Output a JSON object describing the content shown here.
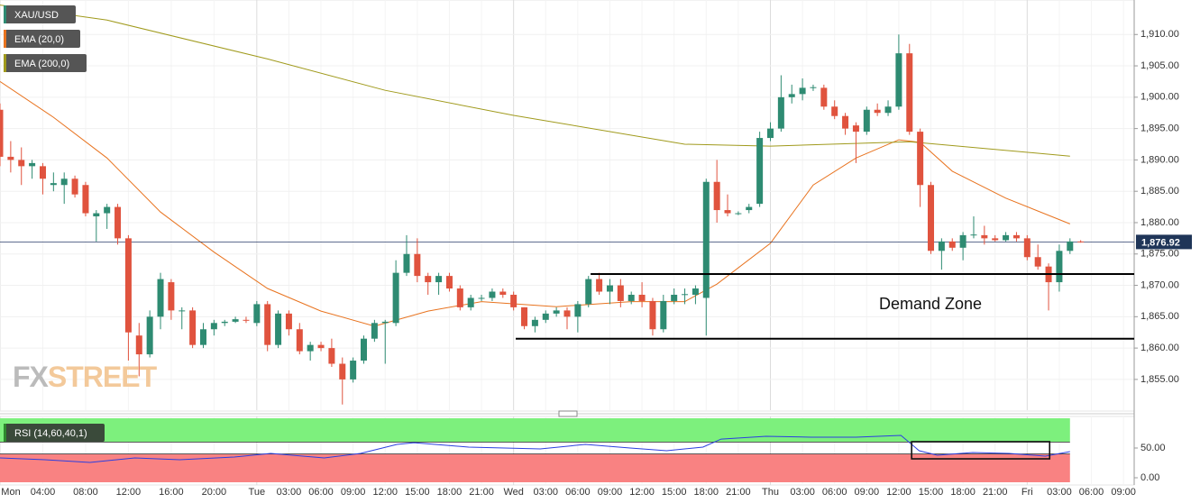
{
  "chart_data": {
    "type": "candlestick",
    "symbol": "XAU/USD",
    "up_color": "#2e8b72",
    "down_color": "#e0533e",
    "x": [
      0,
      1,
      2,
      3,
      4,
      5,
      6,
      7,
      8,
      9,
      10,
      11,
      12,
      13,
      14,
      15,
      16,
      17,
      18,
      19,
      20,
      21,
      22,
      23,
      24,
      25,
      26,
      27,
      28,
      29,
      30,
      31,
      32,
      33,
      34,
      35,
      36,
      37,
      38,
      39,
      40,
      41,
      42,
      43,
      44,
      45,
      46,
      47,
      48,
      49,
      50,
      51,
      52,
      53,
      54,
      55,
      56,
      57,
      58,
      59,
      60,
      61,
      62,
      63,
      64,
      65,
      66,
      67,
      68,
      69,
      70,
      71,
      72,
      73,
      74,
      75,
      76,
      77,
      78,
      79,
      80,
      81,
      82,
      83,
      84,
      85,
      86,
      87,
      88,
      89,
      90,
      91,
      92,
      93,
      94,
      95,
      96,
      97,
      98,
      99,
      100,
      101
    ],
    "open": [
      1898,
      1890.5,
      1890,
      1889,
      1889,
      1886,
      1886,
      1887,
      1886,
      1881,
      1881.5,
      1882.5,
      1877.5,
      1862,
      1859,
      1865,
      1870.5,
      1866,
      1866,
      1860.5,
      1863,
      1864,
      1864.2,
      1864.5,
      1864,
      1867,
      1860.5,
      1865.5,
      1863,
      1859.5,
      1860.5,
      1860,
      1857.5,
      1855,
      1858,
      1861.5,
      1864,
      1864,
      1872,
      1875,
      1871.5,
      1870.5,
      1871.5,
      1869.5,
      1866.5,
      1868,
      1868,
      1869,
      1868.5,
      1866.5,
      1863.5,
      1864.5,
      1865.5,
      1866,
      1865,
      1867,
      1871,
      1869,
      1870,
      1867.5,
      1868.5,
      1867.5,
      1863,
      1867.5,
      1868.5,
      1868.5,
      1868,
      1886.5,
      1882,
      1881.5,
      1882,
      1883,
      1893.5,
      1895,
      1900,
      1900.5,
      1901.5,
      1901.5,
      1898.5,
      1897,
      1895.5,
      1894.5,
      1898,
      1897.5,
      1898.5,
      1907,
      1894.5,
      1886,
      1875.5,
      1877,
      1876,
      1878,
      1878,
      1877.5,
      1877.2,
      1878,
      1877.5,
      1874.5,
      1873,
      1870.5,
      1875.5,
      1877
    ],
    "high": [
      1899,
      1893,
      1892,
      1890,
      1889.5,
      1888,
      1888,
      1887.5,
      1886.5,
      1882,
      1883,
      1883,
      1878,
      1864,
      1866,
      1872,
      1871,
      1866.5,
      1866.5,
      1864,
      1864.5,
      1864.5,
      1865,
      1865,
      1867.5,
      1867.5,
      1866,
      1866,
      1864,
      1861,
      1861,
      1861.5,
      1858.5,
      1858.5,
      1862,
      1864.5,
      1864.5,
      1874,
      1878,
      1877.5,
      1872,
      1872,
      1872,
      1870,
      1868.5,
      1868.5,
      1869.5,
      1869.5,
      1869,
      1866.5,
      1865,
      1866,
      1866.5,
      1866.5,
      1867.5,
      1871.5,
      1872,
      1871,
      1871,
      1869,
      1870.5,
      1868,
      1868.5,
      1869.5,
      1869.5,
      1870,
      1887,
      1890,
      1884.5,
      1881.8,
      1883,
      1894.5,
      1896,
      1903.5,
      1902,
      1903,
      1902,
      1902,
      1899.5,
      1897.5,
      1896,
      1898.5,
      1899,
      1899.5,
      1910,
      1908.5,
      1895,
      1886.5,
      1877.5,
      1877.5,
      1878.5,
      1881,
      1879.5,
      1878,
      1878.5,
      1878.5,
      1878,
      1876.5,
      1873.5,
      1876.5,
      1877.5,
      1877.2
    ],
    "low": [
      1889,
      1888,
      1886,
      1887,
      1884.5,
      1885,
      1883,
      1884,
      1881,
      1877,
      1879,
      1876.5,
      1858,
      1855.5,
      1858.5,
      1863,
      1864.5,
      1863,
      1860,
      1860,
      1862,
      1863.5,
      1864,
      1864,
      1863.5,
      1859.5,
      1860,
      1862,
      1859,
      1858,
      1859.5,
      1857,
      1851,
      1854.5,
      1857.5,
      1861,
      1857.5,
      1863.5,
      1871.5,
      1870.5,
      1868.5,
      1868.5,
      1869,
      1866,
      1866,
      1867.5,
      1867.5,
      1868,
      1866,
      1863,
      1862.5,
      1864,
      1865,
      1863,
      1862.5,
      1866.5,
      1868.5,
      1867,
      1866.5,
      1867,
      1866.5,
      1862,
      1862.5,
      1867,
      1867,
      1867,
      1862,
      1880,
      1881,
      1881.2,
      1881.5,
      1882.5,
      1893,
      1894.5,
      1899,
      1899.5,
      1901,
      1898,
      1896.5,
      1894,
      1889.5,
      1894,
      1897,
      1897,
      1898,
      1894,
      1882.5,
      1875,
      1872.5,
      1875.5,
      1874,
      1877.5,
      1876.5,
      1877,
      1877,
      1877,
      1874,
      1872.5,
      1866,
      1869,
      1875,
      1876.8
    ],
    "close": [
      1890.5,
      1890,
      1889,
      1889.5,
      1887,
      1886.3,
      1887,
      1884.5,
      1881.5,
      1881.5,
      1882.5,
      1877.5,
      1862.5,
      1859,
      1865,
      1871,
      1866,
      1866,
      1860.5,
      1863,
      1864,
      1864.2,
      1864.6,
      1864.4,
      1867,
      1860.5,
      1865.5,
      1863,
      1859.5,
      1860.5,
      1860,
      1857.5,
      1855,
      1858,
      1861.5,
      1864,
      1864.2,
      1872,
      1875,
      1871.5,
      1870.5,
      1871.5,
      1869.5,
      1866.5,
      1868,
      1868,
      1869,
      1868.5,
      1866.5,
      1863.5,
      1864.5,
      1865.5,
      1866,
      1865,
      1867,
      1871,
      1869,
      1870,
      1867.5,
      1868.5,
      1867.5,
      1863,
      1867.5,
      1868.5,
      1868.6,
      1869.5,
      1886.5,
      1882,
      1881.5,
      1881.5,
      1882.5,
      1893.5,
      1895,
      1900,
      1900.5,
      1901.5,
      1901.6,
      1898.5,
      1897,
      1895,
      1894.5,
      1898,
      1897.5,
      1898.5,
      1907,
      1894.5,
      1886,
      1875.5,
      1877,
      1876,
      1878,
      1878.1,
      1877.5,
      1877.2,
      1878,
      1877.5,
      1874.5,
      1873,
      1870.5,
      1875.5,
      1877,
      1876.92
    ],
    "overlays": [
      {
        "name": "EMA (20,0)",
        "color": "#e8731f",
        "x": [
          0,
          5,
          10,
          15,
          20,
          25,
          30,
          35,
          40,
          45,
          52,
          59,
          64,
          67,
          72,
          76,
          80,
          84,
          86,
          89,
          94,
          100
        ],
        "values": [
          1902.5,
          1896.8,
          1890.3,
          1881.7,
          1875.3,
          1869.5,
          1865.9,
          1863.5,
          1865.9,
          1867.4,
          1866.6,
          1867.4,
          1867.4,
          1870.2,
          1876.7,
          1886,
          1890.3,
          1893.2,
          1892.8,
          1888.2,
          1883.9,
          1879.8
        ]
      },
      {
        "name": "EMA (200,0)",
        "color": "#a09a1c",
        "x": [
          0,
          10,
          25,
          36,
          48,
          64,
          72,
          85,
          100
        ],
        "values": [
          1914.7,
          1912.3,
          1906.1,
          1901.1,
          1897.1,
          1892.5,
          1892.2,
          1892.9,
          1890.6
        ]
      }
    ],
    "levels": [
      {
        "value": 1871.8,
        "from": 55.2,
        "to": 106
      },
      {
        "value": 1861.5,
        "from": 48.2,
        "to": 106
      }
    ],
    "zone_label": "Demand Zone",
    "last_price": {
      "value": 1876.92,
      "label": "1,876.92"
    },
    "xlim": [
      0,
      106
    ],
    "xticks": [
      {
        "value": 0,
        "label": "Mon"
      },
      {
        "value": 4,
        "label": "04:00"
      },
      {
        "value": 8,
        "label": "08:00"
      },
      {
        "value": 12,
        "label": "12:00"
      },
      {
        "value": 16,
        "label": "16:00"
      },
      {
        "value": 20,
        "label": "20:00"
      },
      {
        "value": 24,
        "label": "Tue"
      },
      {
        "value": 27,
        "label": "03:00"
      },
      {
        "value": 30,
        "label": "06:00"
      },
      {
        "value": 33,
        "label": "09:00"
      },
      {
        "value": 36,
        "label": "12:00"
      },
      {
        "value": 39,
        "label": "15:00"
      },
      {
        "value": 42,
        "label": "18:00"
      },
      {
        "value": 45,
        "label": "21:00"
      },
      {
        "value": 48,
        "label": "Wed"
      },
      {
        "value": 51,
        "label": "03:00"
      },
      {
        "value": 54,
        "label": "06:00"
      },
      {
        "value": 57,
        "label": "09:00"
      },
      {
        "value": 60,
        "label": "12:00"
      },
      {
        "value": 63,
        "label": "15:00"
      },
      {
        "value": 66,
        "label": "18:00"
      },
      {
        "value": 69,
        "label": "21:00"
      },
      {
        "value": 72,
        "label": "Thu"
      },
      {
        "value": 75,
        "label": "03:00"
      },
      {
        "value": 78,
        "label": "06:00"
      },
      {
        "value": 81,
        "label": "09:00"
      },
      {
        "value": 84,
        "label": "12:00"
      },
      {
        "value": 87,
        "label": "15:00"
      },
      {
        "value": 90,
        "label": "18:00"
      },
      {
        "value": 93,
        "label": "21:00"
      },
      {
        "value": 96,
        "label": "Fri"
      },
      {
        "value": 99,
        "label": "03:00"
      },
      {
        "value": 102,
        "label": "06:00"
      },
      {
        "value": 105,
        "label": "09:00"
      }
    ],
    "ylim": [
      1850.1,
      1915.5
    ],
    "yticks": [
      {
        "value": 1855,
        "label": "1,855.00"
      },
      {
        "value": 1860,
        "label": "1,860.00"
      },
      {
        "value": 1865,
        "label": "1,865.00"
      },
      {
        "value": 1870,
        "label": "1,870.00"
      },
      {
        "value": 1875,
        "label": "1,875.00"
      },
      {
        "value": 1880,
        "label": "1,880.00"
      },
      {
        "value": 1885,
        "label": "1,885.00"
      },
      {
        "value": 1890,
        "label": "1,890.00"
      },
      {
        "value": 1895,
        "label": "1,895.00"
      },
      {
        "value": 1900,
        "label": "1,900.00"
      },
      {
        "value": 1905,
        "label": "1,905.00"
      },
      {
        "value": 1910,
        "label": "1,910.00"
      }
    ],
    "grid": true,
    "rsi": {
      "name": "RSI (14,60,40,1)",
      "color": "#2b3fe0",
      "x": [
        0,
        4.2,
        8.4,
        12.6,
        16.8,
        21.9,
        25.3,
        30.3,
        33.7,
        37.1,
        38.7,
        43.8,
        50.5,
        54.7,
        58.9,
        62.3,
        65.7,
        67.4,
        71.6,
        75.8,
        80,
        84.2,
        85.9,
        87.6,
        90.9,
        94.3,
        97.7,
        100
      ],
      "values": [
        33.3,
        30.3,
        25.8,
        33.3,
        30.3,
        34.8,
        40.9,
        33.3,
        40.9,
        56,
        59,
        51.5,
        48.5,
        56,
        50,
        45.5,
        51.5,
        65,
        69.7,
        68.2,
        68.2,
        71.2,
        45.5,
        37.9,
        42.4,
        40.9,
        36.4,
        43.9
      ],
      "upper": 60,
      "lower": 40,
      "upper_color": "#7df07d",
      "lower_color": "#f98282",
      "ylim": [
        -7.6,
        100
      ],
      "yticks": [
        {
          "value": 0,
          "label": "0.00"
        },
        {
          "value": 50,
          "label": "50.00"
        }
      ],
      "box": {
        "x": [
          85.2,
          98.1
        ],
        "y": [
          31.8,
          60.6
        ]
      }
    },
    "watermark": [
      "FX",
      "STREET"
    ]
  }
}
